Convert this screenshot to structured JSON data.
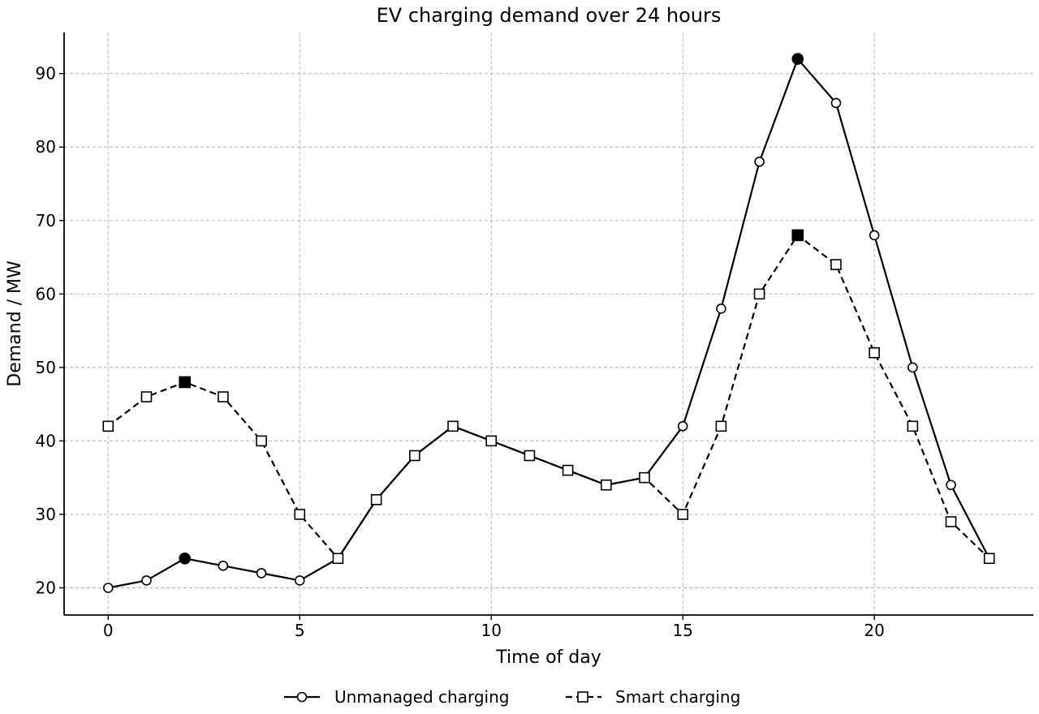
{
  "chart_data": {
    "type": "line",
    "title": "EV charging demand over 24 hours",
    "xlabel": "Time of day",
    "ylabel": "Demand / MW",
    "xlim": [
      -1.15,
      24.15
    ],
    "ylim": [
      16.3,
      95.6
    ],
    "xticks": [
      0,
      5,
      10,
      15,
      20
    ],
    "yticks": [
      20,
      30,
      40,
      50,
      60,
      70,
      80,
      90
    ],
    "grid": true,
    "legend_position": "bottom-center",
    "x": [
      0,
      1,
      2,
      3,
      4,
      5,
      6,
      7,
      8,
      9,
      10,
      11,
      12,
      13,
      14,
      15,
      16,
      17,
      18,
      19,
      20,
      21,
      22,
      23
    ],
    "series": [
      {
        "name": "Unmanaged charging",
        "marker": "circle",
        "line_style": "solid",
        "values": [
          20,
          21,
          24,
          23,
          22,
          21,
          24,
          32,
          38,
          42,
          40,
          38,
          36,
          34,
          35,
          42,
          58,
          78,
          92,
          86,
          68,
          50,
          34,
          24
        ],
        "highlighted_points": [
          2,
          18
        ]
      },
      {
        "name": "Smart charging",
        "marker": "square",
        "line_style": "dashed",
        "values": [
          42,
          46,
          48,
          46,
          40,
          30,
          24,
          32,
          38,
          42,
          40,
          38,
          36,
          34,
          35,
          30,
          42,
          60,
          68,
          64,
          52,
          42,
          29,
          24
        ],
        "highlighted_points": [
          2,
          18
        ]
      }
    ],
    "colors": {
      "line": "#000000",
      "marker_fill": "#ffffff",
      "highlight_fill": "#000000",
      "grid": "#b0b0b0"
    }
  }
}
